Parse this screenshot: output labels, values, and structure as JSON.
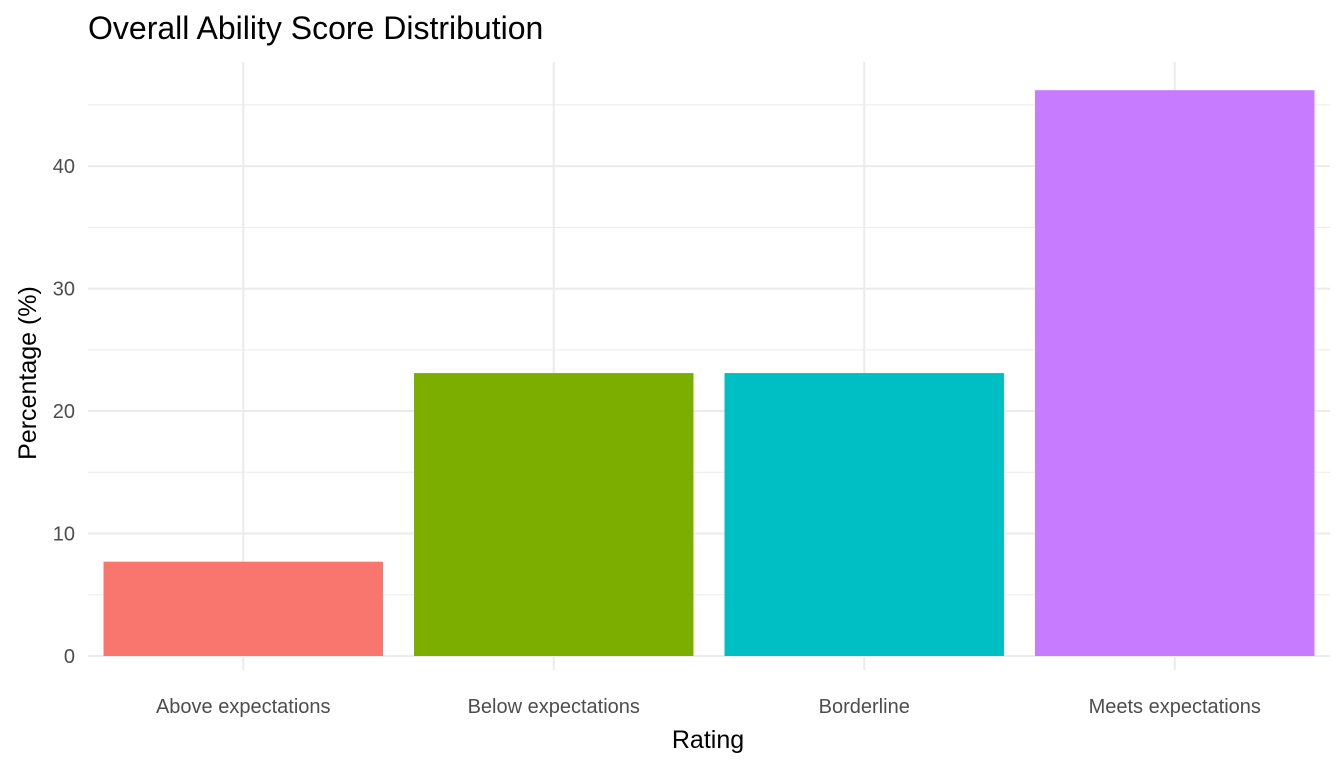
{
  "chart_data": {
    "type": "bar",
    "title": "Overall Ability Score Distribution",
    "xlabel": "Rating",
    "ylabel": "Percentage (%)",
    "categories": [
      "Above expectations",
      "Below expectations",
      "Borderline",
      "Meets expectations"
    ],
    "values": [
      7.7,
      23.1,
      23.1,
      46.2
    ],
    "colors": [
      "#F8766D",
      "#7CAE00",
      "#00BFC4",
      "#C77CFF"
    ],
    "ylim": [
      0,
      48.5
    ],
    "yticks": [
      0,
      10,
      20,
      30,
      40
    ],
    "grid": true,
    "legend": "none"
  }
}
